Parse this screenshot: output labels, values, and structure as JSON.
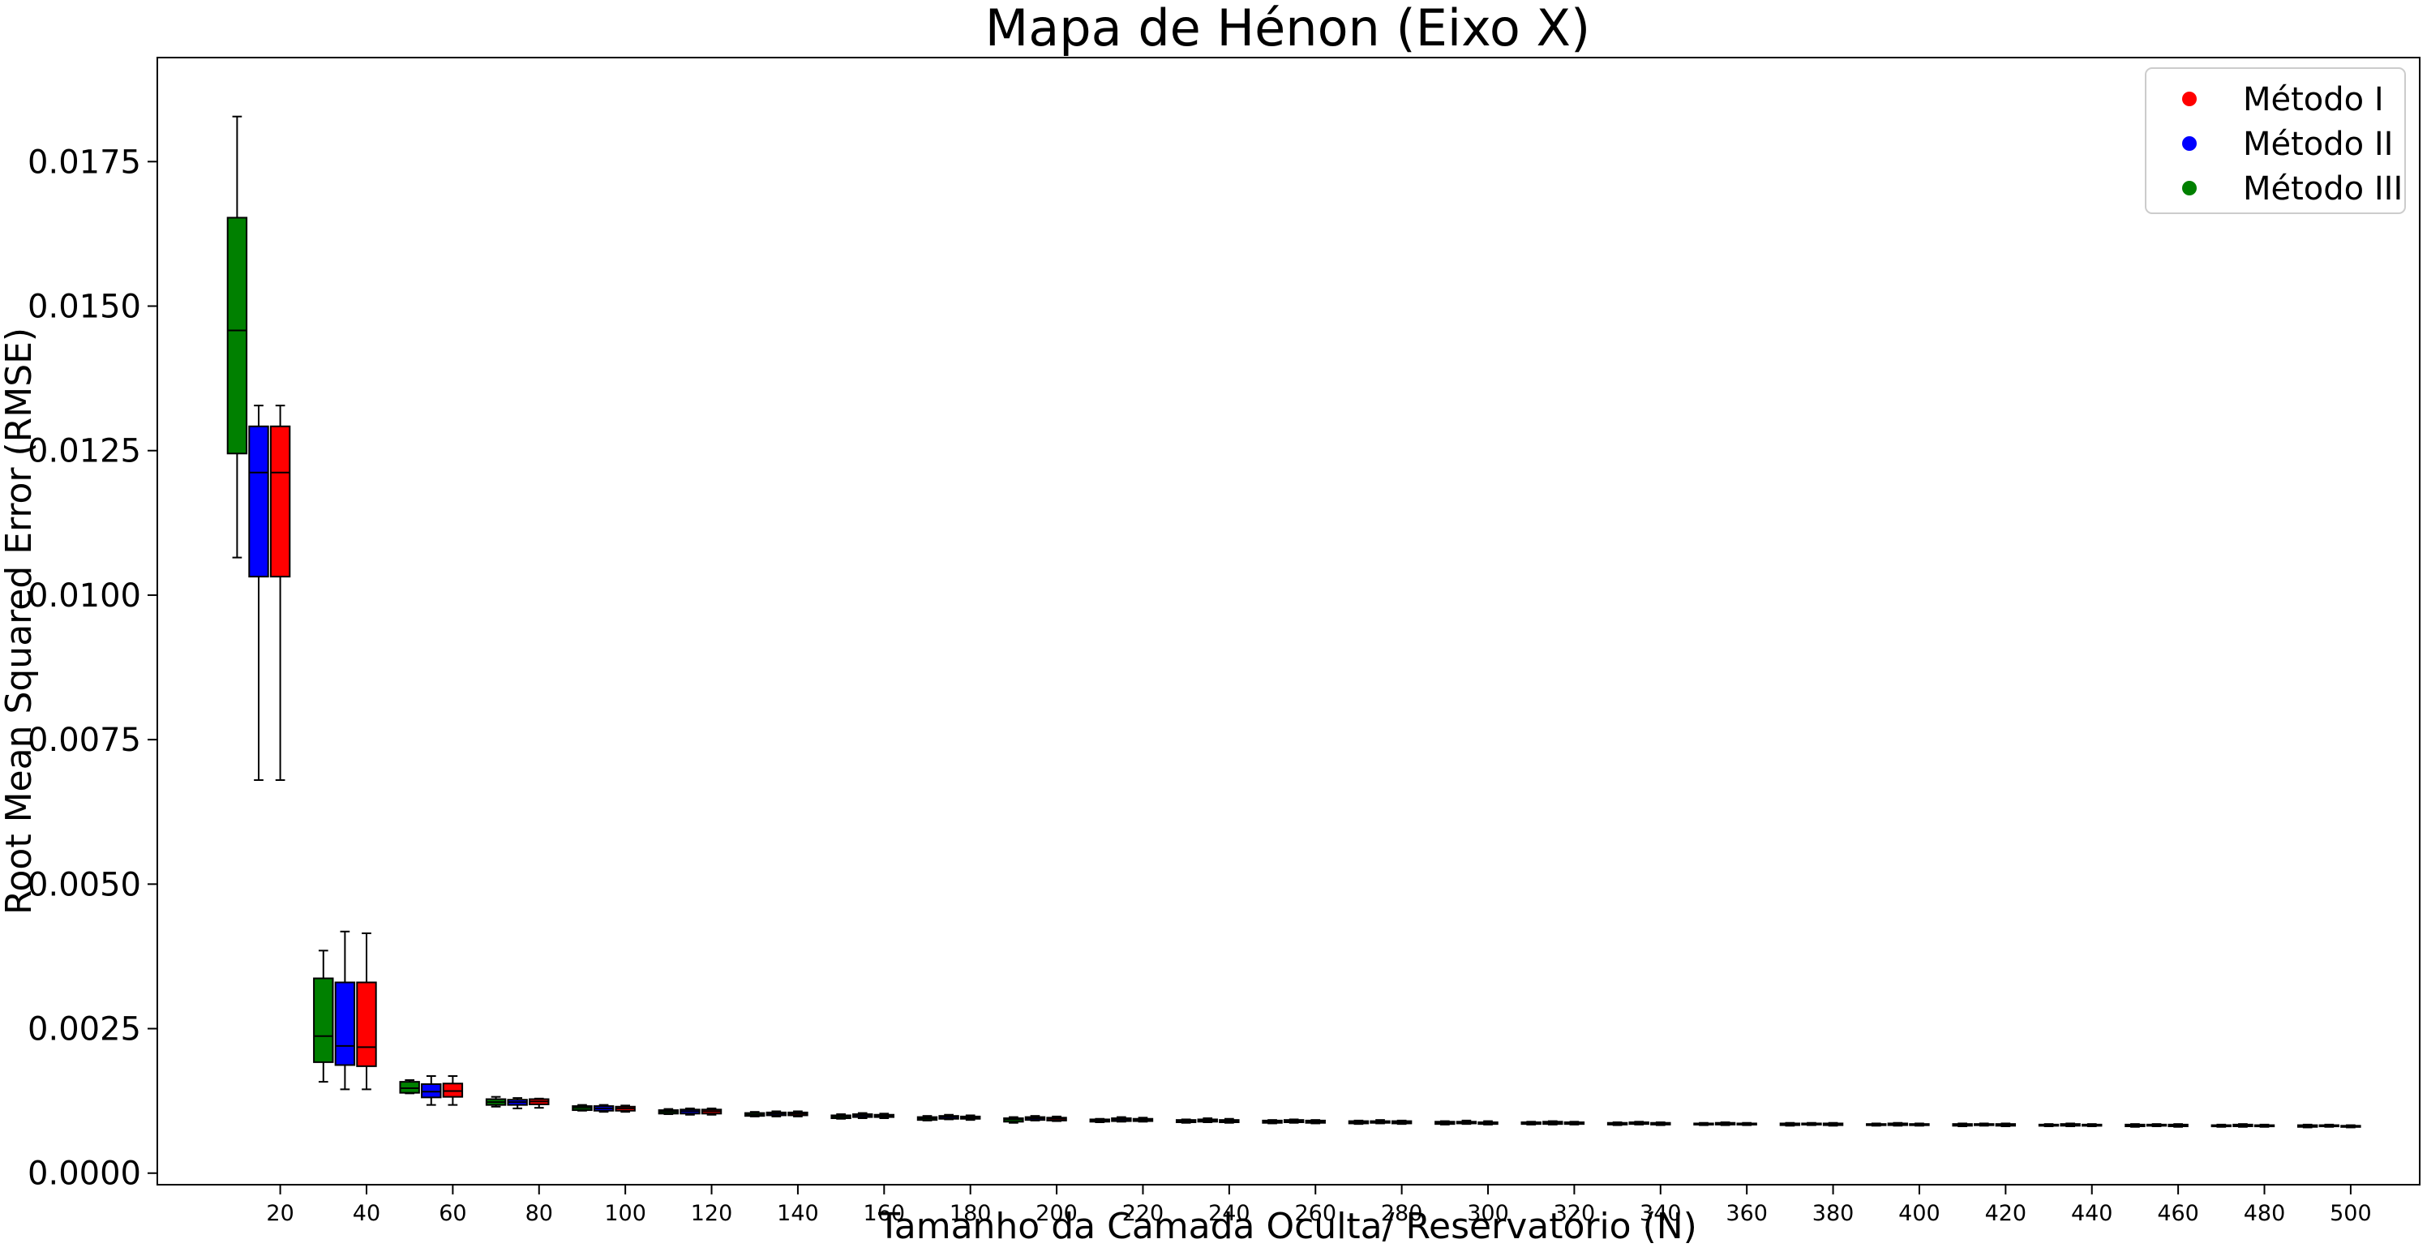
{
  "chart_data": {
    "type": "box",
    "title": "Mapa de Hénon (Eixo X)",
    "xlabel": "Tamanho da Camada Oculta/ Reservatório (N)",
    "ylabel": "Root Mean Squared Error (RMSE)",
    "xlim": [
      -8.5,
      516
    ],
    "ylim": [
      -0.0002,
      0.0193
    ],
    "yticks": [
      0.0,
      0.0025,
      0.005,
      0.0075,
      0.01,
      0.0125,
      0.015,
      0.0175
    ],
    "ytick_labels": [
      "0.0000",
      "0.0025",
      "0.0050",
      "0.0075",
      "0.0100",
      "0.0125",
      "0.0150",
      "0.0175"
    ],
    "xticks": [
      20,
      40,
      60,
      80,
      100,
      120,
      140,
      160,
      180,
      200,
      220,
      240,
      260,
      280,
      300,
      320,
      340,
      360,
      380,
      400,
      420,
      440,
      460,
      480,
      500
    ],
    "legend_position": "top-right",
    "legend": [
      {
        "label": "Método I",
        "color": "#ff0000"
      },
      {
        "label": "Método II",
        "color": "#0000ff"
      },
      {
        "label": "Método III",
        "color": "#008000"
      }
    ],
    "series": [
      {
        "name": "Método III",
        "color": "#008000",
        "offset": -10,
        "boxes": [
          {
            "n": 20,
            "min": 0.01065,
            "q1": 0.01245,
            "median": 0.01458,
            "q3": 0.01653,
            "max": 0.01828
          },
          {
            "n": 40,
            "min": 0.00158,
            "q1": 0.00192,
            "median": 0.00237,
            "q3": 0.00337,
            "max": 0.00385
          },
          {
            "n": 60,
            "min": 0.00138,
            "q1": 0.00139,
            "median": 0.00147,
            "q3": 0.00158,
            "max": 0.00161
          },
          {
            "n": 80,
            "min": 0.00115,
            "q1": 0.00118,
            "median": 0.00123,
            "q3": 0.00128,
            "max": 0.00132
          },
          {
            "n": 100,
            "min": 0.00108,
            "q1": 0.00109,
            "median": 0.00113,
            "q3": 0.00116,
            "max": 0.00118
          },
          {
            "n": 120,
            "min": 0.00102,
            "q1": 0.00103,
            "median": 0.00106,
            "q3": 0.00109,
            "max": 0.00111
          },
          {
            "n": 140,
            "min": 0.00098,
            "q1": 0.00099,
            "median": 0.00101,
            "q3": 0.00104,
            "max": 0.00106
          },
          {
            "n": 160,
            "min": 0.00094,
            "q1": 0.00095,
            "median": 0.00098,
            "q3": 0.001,
            "max": 0.00102
          },
          {
            "n": 180,
            "min": 0.00091,
            "q1": 0.00092,
            "median": 0.00095,
            "q3": 0.00097,
            "max": 0.00099
          },
          {
            "n": 200,
            "min": 0.00087,
            "q1": 0.00089,
            "median": 0.00093,
            "q3": 0.00095,
            "max": 0.00097
          },
          {
            "n": 220,
            "min": 0.00088,
            "q1": 0.00089,
            "median": 0.00091,
            "q3": 0.00093,
            "max": 0.00094
          },
          {
            "n": 240,
            "min": 0.00087,
            "q1": 0.00088,
            "median": 0.0009,
            "q3": 0.00092,
            "max": 0.00093
          },
          {
            "n": 260,
            "min": 0.00086,
            "q1": 0.00087,
            "median": 0.00089,
            "q3": 0.00091,
            "max": 0.00092
          },
          {
            "n": 280,
            "min": 0.00085,
            "q1": 0.00086,
            "median": 0.00088,
            "q3": 0.0009,
            "max": 0.00091
          },
          {
            "n": 300,
            "min": 0.00084,
            "q1": 0.00085,
            "median": 0.00087,
            "q3": 0.00089,
            "max": 0.0009
          },
          {
            "n": 320,
            "min": 0.00084,
            "q1": 0.00085,
            "median": 0.00086,
            "q3": 0.00088,
            "max": 0.00089
          },
          {
            "n": 340,
            "min": 0.00083,
            "q1": 0.00084,
            "median": 0.00086,
            "q3": 0.00087,
            "max": 0.00088
          },
          {
            "n": 360,
            "min": 0.00083,
            "q1": 0.00084,
            "median": 0.00085,
            "q3": 0.00086,
            "max": 0.00087
          },
          {
            "n": 380,
            "min": 0.00082,
            "q1": 0.00083,
            "median": 0.00085,
            "q3": 0.00086,
            "max": 0.00087
          },
          {
            "n": 400,
            "min": 0.00082,
            "q1": 0.00083,
            "median": 0.00084,
            "q3": 0.00085,
            "max": 0.00086
          },
          {
            "n": 420,
            "min": 0.00081,
            "q1": 0.00082,
            "median": 0.00084,
            "q3": 0.00085,
            "max": 0.00086
          },
          {
            "n": 440,
            "min": 0.00081,
            "q1": 0.00082,
            "median": 0.00083,
            "q3": 0.00084,
            "max": 0.00085
          },
          {
            "n": 460,
            "min": 0.0008,
            "q1": 0.00081,
            "median": 0.00083,
            "q3": 0.00084,
            "max": 0.00085
          },
          {
            "n": 480,
            "min": 0.0008,
            "q1": 0.00081,
            "median": 0.00082,
            "q3": 0.00083,
            "max": 0.00084
          },
          {
            "n": 500,
            "min": 0.00079,
            "q1": 0.0008,
            "median": 0.00082,
            "q3": 0.00083,
            "max": 0.00084
          }
        ]
      },
      {
        "name": "Método II",
        "color": "#0000ff",
        "offset": -5,
        "boxes": [
          {
            "n": 20,
            "min": 0.0068,
            "q1": 0.01032,
            "median": 0.01212,
            "q3": 0.01292,
            "max": 0.01328
          },
          {
            "n": 40,
            "min": 0.00145,
            "q1": 0.00187,
            "median": 0.0022,
            "q3": 0.0033,
            "max": 0.00418
          },
          {
            "n": 60,
            "min": 0.00118,
            "q1": 0.00131,
            "median": 0.00141,
            "q3": 0.00154,
            "max": 0.00168
          },
          {
            "n": 80,
            "min": 0.00112,
            "q1": 0.00118,
            "median": 0.00123,
            "q3": 0.00127,
            "max": 0.0013
          },
          {
            "n": 100,
            "min": 0.00106,
            "q1": 0.00108,
            "median": 0.00112,
            "q3": 0.00116,
            "max": 0.00118
          },
          {
            "n": 120,
            "min": 0.00101,
            "q1": 0.00103,
            "median": 0.00107,
            "q3": 0.0011,
            "max": 0.00112
          },
          {
            "n": 140,
            "min": 0.00098,
            "q1": 0.001,
            "median": 0.00103,
            "q3": 0.00105,
            "max": 0.00107
          },
          {
            "n": 160,
            "min": 0.00095,
            "q1": 0.00097,
            "median": 0.001,
            "q3": 0.00102,
            "max": 0.00104
          },
          {
            "n": 180,
            "min": 0.00093,
            "q1": 0.00094,
            "median": 0.00097,
            "q3": 0.00099,
            "max": 0.00101
          },
          {
            "n": 200,
            "min": 0.00091,
            "q1": 0.00092,
            "median": 0.00095,
            "q3": 0.00097,
            "max": 0.00099
          },
          {
            "n": 220,
            "min": 0.00089,
            "q1": 0.0009,
            "median": 0.00093,
            "q3": 0.00095,
            "max": 0.00097
          },
          {
            "n": 240,
            "min": 0.00088,
            "q1": 0.00089,
            "median": 0.00091,
            "q3": 0.00093,
            "max": 0.00095
          },
          {
            "n": 260,
            "min": 0.00087,
            "q1": 0.00088,
            "median": 0.0009,
            "q3": 0.00092,
            "max": 0.00093
          },
          {
            "n": 280,
            "min": 0.00086,
            "q1": 0.00087,
            "median": 0.00089,
            "q3": 0.0009,
            "max": 0.00092
          },
          {
            "n": 300,
            "min": 0.00085,
            "q1": 0.00086,
            "median": 0.00088,
            "q3": 0.00089,
            "max": 0.00091
          },
          {
            "n": 320,
            "min": 0.00084,
            "q1": 0.00085,
            "median": 0.00087,
            "q3": 0.00089,
            "max": 0.0009
          },
          {
            "n": 340,
            "min": 0.00084,
            "q1": 0.00085,
            "median": 0.00086,
            "q3": 0.00088,
            "max": 0.00089
          },
          {
            "n": 360,
            "min": 0.00083,
            "q1": 0.00084,
            "median": 0.00086,
            "q3": 0.00087,
            "max": 0.00088
          },
          {
            "n": 380,
            "min": 0.00083,
            "q1": 0.00084,
            "median": 0.00085,
            "q3": 0.00086,
            "max": 0.00087
          },
          {
            "n": 400,
            "min": 0.00082,
            "q1": 0.00083,
            "median": 0.00085,
            "q3": 0.00086,
            "max": 0.00087
          },
          {
            "n": 420,
            "min": 0.00082,
            "q1": 0.00083,
            "median": 0.00084,
            "q3": 0.00085,
            "max": 0.00086
          },
          {
            "n": 440,
            "min": 0.00081,
            "q1": 0.00082,
            "median": 0.00084,
            "q3": 0.00085,
            "max": 0.00086
          },
          {
            "n": 460,
            "min": 0.00081,
            "q1": 0.00082,
            "median": 0.00083,
            "q3": 0.00084,
            "max": 0.00085
          },
          {
            "n": 480,
            "min": 0.0008,
            "q1": 0.00081,
            "median": 0.00083,
            "q3": 0.00084,
            "max": 0.00085
          },
          {
            "n": 500,
            "min": 0.0008,
            "q1": 0.00081,
            "median": 0.00082,
            "q3": 0.00083,
            "max": 0.00084
          }
        ]
      },
      {
        "name": "Método I",
        "color": "#ff0000",
        "offset": 0,
        "boxes": [
          {
            "n": 20,
            "min": 0.0068,
            "q1": 0.01032,
            "median": 0.01212,
            "q3": 0.01292,
            "max": 0.01328
          },
          {
            "n": 40,
            "min": 0.00145,
            "q1": 0.00185,
            "median": 0.00218,
            "q3": 0.0033,
            "max": 0.00415
          },
          {
            "n": 60,
            "min": 0.00118,
            "q1": 0.00132,
            "median": 0.00142,
            "q3": 0.00155,
            "max": 0.00168
          },
          {
            "n": 80,
            "min": 0.00113,
            "q1": 0.00119,
            "median": 0.00124,
            "q3": 0.00128,
            "max": 0.00129
          },
          {
            "n": 100,
            "min": 0.00106,
            "q1": 0.00108,
            "median": 0.00112,
            "q3": 0.00115,
            "max": 0.00117
          },
          {
            "n": 120,
            "min": 0.00101,
            "q1": 0.00103,
            "median": 0.00107,
            "q3": 0.0011,
            "max": 0.00112
          },
          {
            "n": 140,
            "min": 0.00098,
            "q1": 0.001,
            "median": 0.00103,
            "q3": 0.00105,
            "max": 0.00107
          },
          {
            "n": 160,
            "min": 0.00095,
            "q1": 0.00097,
            "median": 0.00099,
            "q3": 0.00101,
            "max": 0.00103
          },
          {
            "n": 180,
            "min": 0.00092,
            "q1": 0.00094,
            "median": 0.00096,
            "q3": 0.00098,
            "max": 0.001
          },
          {
            "n": 200,
            "min": 0.0009,
            "q1": 0.00091,
            "median": 0.00094,
            "q3": 0.00096,
            "max": 0.00098
          },
          {
            "n": 220,
            "min": 0.00089,
            "q1": 0.0009,
            "median": 0.00092,
            "q3": 0.00094,
            "max": 0.00096
          },
          {
            "n": 240,
            "min": 0.00087,
            "q1": 0.00088,
            "median": 0.0009,
            "q3": 0.00092,
            "max": 0.00094
          },
          {
            "n": 260,
            "min": 0.00086,
            "q1": 0.00087,
            "median": 0.00089,
            "q3": 0.00091,
            "max": 0.00092
          },
          {
            "n": 280,
            "min": 0.00085,
            "q1": 0.00086,
            "median": 0.00088,
            "q3": 0.0009,
            "max": 0.00091
          },
          {
            "n": 300,
            "min": 0.00084,
            "q1": 0.00085,
            "median": 0.00087,
            "q3": 0.00088,
            "max": 0.0009
          },
          {
            "n": 320,
            "min": 0.00084,
            "q1": 0.00085,
            "median": 0.00086,
            "q3": 0.00088,
            "max": 0.00089
          },
          {
            "n": 340,
            "min": 0.00083,
            "q1": 0.00084,
            "median": 0.00086,
            "q3": 0.00087,
            "max": 0.00088
          },
          {
            "n": 360,
            "min": 0.00083,
            "q1": 0.00084,
            "median": 0.00085,
            "q3": 0.00086,
            "max": 0.00087
          },
          {
            "n": 380,
            "min": 0.00082,
            "q1": 0.00083,
            "median": 0.00085,
            "q3": 0.00086,
            "max": 0.00087
          },
          {
            "n": 400,
            "min": 0.00082,
            "q1": 0.00083,
            "median": 0.00084,
            "q3": 0.00085,
            "max": 0.00086
          },
          {
            "n": 420,
            "min": 0.00081,
            "q1": 0.00082,
            "median": 0.00084,
            "q3": 0.00085,
            "max": 0.00086
          },
          {
            "n": 440,
            "min": 0.00081,
            "q1": 0.00082,
            "median": 0.00083,
            "q3": 0.00084,
            "max": 0.00085
          },
          {
            "n": 460,
            "min": 0.0008,
            "q1": 0.00081,
            "median": 0.00083,
            "q3": 0.00084,
            "max": 0.00085
          },
          {
            "n": 480,
            "min": 0.0008,
            "q1": 0.00081,
            "median": 0.00082,
            "q3": 0.00083,
            "max": 0.00084
          },
          {
            "n": 500,
            "min": 0.00079,
            "q1": 0.0008,
            "median": 0.00081,
            "q3": 0.00082,
            "max": 0.00083
          }
        ]
      }
    ]
  }
}
